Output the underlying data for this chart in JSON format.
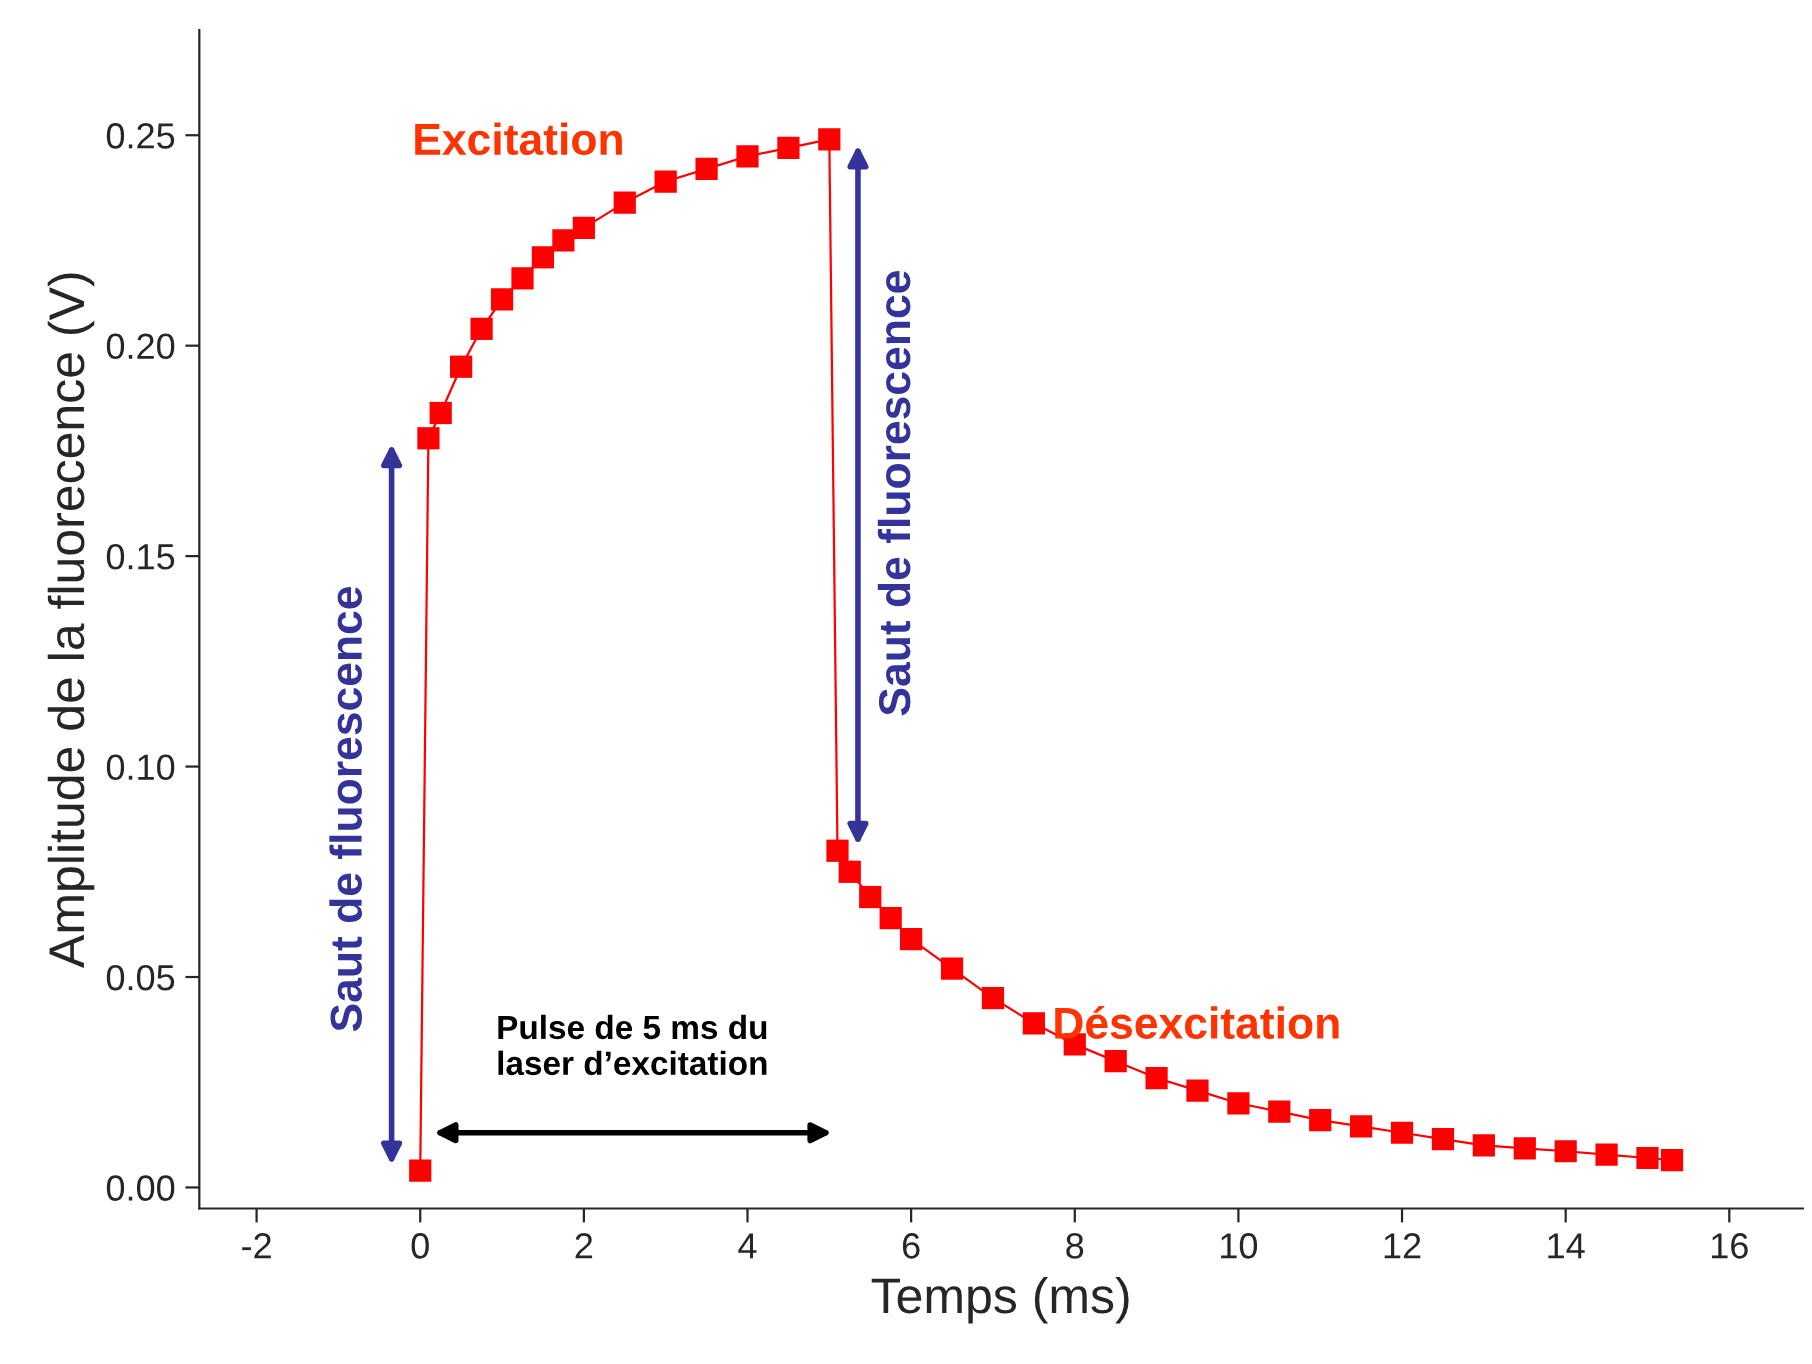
{
  "chart_data": {
    "type": "line",
    "xlabel": "Temps (ms)",
    "ylabel": "Amplitude de la fluorecence (V)",
    "xlim": [
      -2.7,
      16.9
    ],
    "ylim": [
      -0.005,
      0.275
    ],
    "xticks": [
      -2,
      0,
      2,
      4,
      6,
      8,
      10,
      12,
      14,
      16
    ],
    "yticks": [
      {
        "value": 0,
        "label": "0.00"
      },
      {
        "value": 0.05,
        "label": "0.05"
      },
      {
        "value": 0.1,
        "label": "0.10"
      },
      {
        "value": 0.15,
        "label": "0.15"
      },
      {
        "value": 0.2,
        "label": "0.20"
      },
      {
        "value": 0.25,
        "label": "0.25"
      }
    ],
    "marker": "square",
    "grid": false,
    "series": [
      {
        "color": "#ff0000",
        "x": [
          0,
          0.1,
          0.25,
          0.5,
          0.75,
          1.0,
          1.25,
          1.5,
          1.75,
          2.0,
          2.5,
          3.0,
          3.5,
          4.0,
          4.5,
          5.0,
          5.1,
          5.25,
          5.5,
          5.75,
          6.0,
          6.5,
          7.0,
          7.5,
          8.0,
          8.5,
          9.0,
          9.5,
          10,
          10.5,
          11,
          11.5,
          12,
          12.5,
          13,
          13.5,
          14,
          14.5,
          15,
          15.3
        ],
        "values": [
          0.004,
          0.178,
          0.184,
          0.195,
          0.204,
          0.211,
          0.216,
          0.221,
          0.225,
          0.228,
          0.234,
          0.239,
          0.242,
          0.245,
          0.247,
          0.249,
          0.08,
          0.075,
          0.069,
          0.064,
          0.059,
          0.052,
          0.045,
          0.039,
          0.034,
          0.03,
          0.026,
          0.023,
          0.02,
          0.018,
          0.016,
          0.0145,
          0.013,
          0.0115,
          0.01,
          0.0093,
          0.0086,
          0.0078,
          0.007,
          0.0065
        ]
      }
    ],
    "annotations": [
      "Excitation",
      "Saut de fluorescence",
      "Saut de fluorescence",
      "Désexcitation",
      "Pulse de 5 ms du\nlaser d’excitation"
    ]
  }
}
